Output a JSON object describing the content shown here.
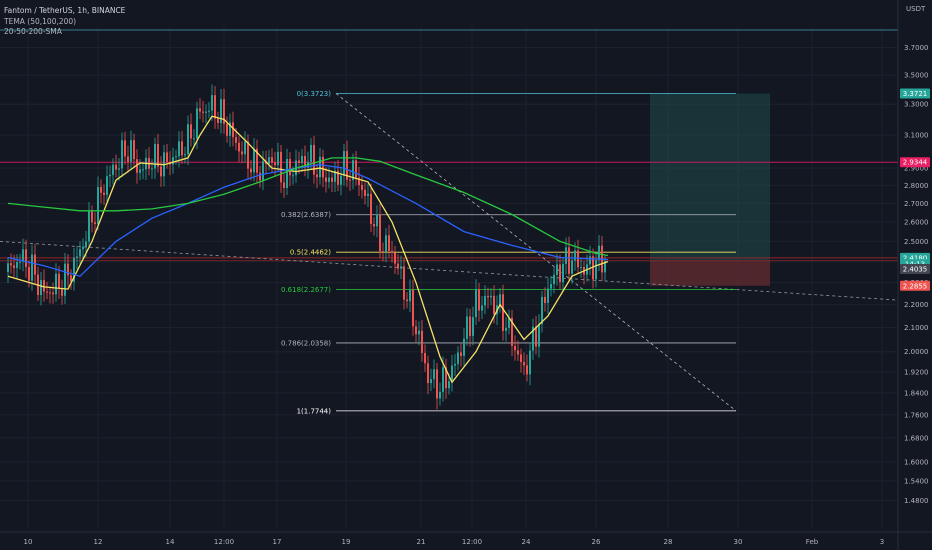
{
  "header": {
    "symbol_line": "Fantom / TetherUS, 1h, BINANCE",
    "indicator_1": "TEMA (50,100,200)",
    "indicator_2": "20-50-200-SMA"
  },
  "currency": "USDT",
  "colors": {
    "background": "#131722",
    "grid": "#1e222d",
    "candle_up": "#26a69a",
    "candle_down": "#ef5350",
    "sma_fast": "#f5e363",
    "sma_mid": "#2962ff",
    "sma_slow": "#27c93f",
    "fib_line": "#b2b5be",
    "resistance": "#c2185b",
    "target_zone": "#1f4d4a",
    "stop_zone": "#5e2a30"
  },
  "chart_data": {
    "type": "candlestick",
    "yscale": "log",
    "ylim": [
      1.4,
      3.85
    ],
    "y_ticks": [
      "3.7000",
      "3.5000",
      "3.3000",
      "3.1000",
      "2.9000",
      "2.8000",
      "2.7000",
      "2.6000",
      "2.5000",
      "2.4000",
      "2.3000",
      "2.2000",
      "2.1000",
      "2.0000",
      "1.9200",
      "1.8400",
      "1.7600",
      "1.6800",
      "1.6000",
      "1.5400",
      "1.4800"
    ],
    "x_ticks": [
      "10",
      "12",
      "14",
      "12:00",
      "17",
      "19",
      "21",
      "12:00",
      "24",
      "26",
      "28",
      "30",
      "Feb",
      "3"
    ],
    "fibonacci": [
      {
        "label": "0(3.3723)",
        "value": 3.3723,
        "color": "#4fc3d7"
      },
      {
        "label": "0.382(2.6387)",
        "value": 2.6387,
        "color": "#b2b5be"
      },
      {
        "label": "0.5(2.4462)",
        "value": 2.4462,
        "color": "#f5e363"
      },
      {
        "label": "0.618(2.2677)",
        "value": 2.2677,
        "color": "#27c93f"
      },
      {
        "label": "0.786(2.0358)",
        "value": 2.0358,
        "color": "#b2b5be"
      },
      {
        "label": "1(1.7744)",
        "value": 1.7744,
        "color": "#ffffff"
      }
    ],
    "price_tags": [
      {
        "label": "3.3721",
        "value": 3.3721,
        "bg": "#26a69a"
      },
      {
        "label": "2.9344",
        "value": 2.9344,
        "bg": "#e91e63"
      },
      {
        "label": "2.4180",
        "value": 2.418,
        "bg": "#26a69a"
      },
      {
        "label": "14:13",
        "value": 2.388,
        "bg": "#26a69a"
      },
      {
        "label": "2.4035",
        "value": 2.364,
        "bg": "#434651"
      },
      {
        "label": "2.2855",
        "value": 2.2855,
        "bg": "#ef5350"
      }
    ],
    "resistance_level": 2.9344,
    "position": {
      "entry": 2.4035,
      "target": 3.3721,
      "stop": 2.2855
    },
    "series": [
      {
        "name": "close",
        "points": [
          [
            0,
            2.35
          ],
          [
            4,
            2.42
          ],
          [
            8,
            2.36
          ],
          [
            12,
            2.25
          ],
          [
            16,
            2.28
          ],
          [
            20,
            2.33
          ],
          [
            24,
            2.45
          ],
          [
            28,
            2.62
          ],
          [
            32,
            2.8
          ],
          [
            36,
            2.92
          ],
          [
            40,
            3.02
          ],
          [
            44,
            2.88
          ],
          [
            48,
            2.95
          ],
          [
            52,
            2.92
          ],
          [
            56,
            2.98
          ],
          [
            60,
            3.06
          ],
          [
            64,
            3.25
          ],
          [
            68,
            3.28
          ],
          [
            72,
            3.2
          ],
          [
            76,
            3.05
          ],
          [
            80,
            2.95
          ],
          [
            84,
            2.88
          ],
          [
            88,
            2.97
          ],
          [
            92,
            2.84
          ],
          [
            96,
            2.92
          ],
          [
            100,
            2.96
          ],
          [
            104,
            2.88
          ],
          [
            108,
            2.82
          ],
          [
            112,
            2.9
          ],
          [
            116,
            2.86
          ],
          [
            120,
            2.7
          ],
          [
            124,
            2.5
          ],
          [
            128,
            2.45
          ],
          [
            132,
            2.28
          ],
          [
            136,
            2.1
          ],
          [
            140,
            1.9
          ],
          [
            144,
            1.86
          ],
          [
            148,
            1.92
          ],
          [
            152,
            2.05
          ],
          [
            156,
            2.2
          ],
          [
            160,
            2.23
          ],
          [
            164,
            2.18
          ],
          [
            168,
            2.05
          ],
          [
            172,
            1.92
          ],
          [
            176,
            2.08
          ],
          [
            180,
            2.28
          ],
          [
            184,
            2.37
          ],
          [
            188,
            2.42
          ],
          [
            192,
            2.36
          ],
          [
            196,
            2.4
          ],
          [
            200,
            2.42
          ]
        ]
      },
      {
        "name": "SMA 20",
        "points": [
          [
            0,
            2.33
          ],
          [
            12,
            2.28
          ],
          [
            20,
            2.27
          ],
          [
            28,
            2.5
          ],
          [
            36,
            2.83
          ],
          [
            44,
            2.93
          ],
          [
            52,
            2.92
          ],
          [
            60,
            2.96
          ],
          [
            64,
            3.1
          ],
          [
            68,
            3.22
          ],
          [
            72,
            3.2
          ],
          [
            80,
            3.05
          ],
          [
            88,
            2.9
          ],
          [
            96,
            2.88
          ],
          [
            104,
            2.9
          ],
          [
            112,
            2.86
          ],
          [
            120,
            2.82
          ],
          [
            128,
            2.6
          ],
          [
            136,
            2.3
          ],
          [
            144,
            1.98
          ],
          [
            148,
            1.88
          ],
          [
            156,
            2.0
          ],
          [
            164,
            2.2
          ],
          [
            172,
            2.05
          ],
          [
            180,
            2.15
          ],
          [
            188,
            2.33
          ],
          [
            196,
            2.38
          ],
          [
            200,
            2.4
          ]
        ]
      },
      {
        "name": "SMA 50",
        "points": [
          [
            0,
            2.42
          ],
          [
            12,
            2.38
          ],
          [
            24,
            2.33
          ],
          [
            36,
            2.5
          ],
          [
            48,
            2.62
          ],
          [
            60,
            2.7
          ],
          [
            72,
            2.79
          ],
          [
            84,
            2.86
          ],
          [
            96,
            2.9
          ],
          [
            104,
            2.92
          ],
          [
            112,
            2.9
          ],
          [
            120,
            2.84
          ],
          [
            136,
            2.7
          ],
          [
            152,
            2.55
          ],
          [
            168,
            2.48
          ],
          [
            184,
            2.42
          ],
          [
            200,
            2.41
          ]
        ]
      },
      {
        "name": "SMA 200",
        "points": [
          [
            0,
            2.7
          ],
          [
            12,
            2.68
          ],
          [
            24,
            2.66
          ],
          [
            36,
            2.66
          ],
          [
            48,
            2.67
          ],
          [
            60,
            2.7
          ],
          [
            72,
            2.75
          ],
          [
            84,
            2.82
          ],
          [
            96,
            2.9
          ],
          [
            108,
            2.96
          ],
          [
            116,
            2.96
          ],
          [
            124,
            2.94
          ],
          [
            136,
            2.86
          ],
          [
            152,
            2.76
          ],
          [
            168,
            2.64
          ],
          [
            184,
            2.5
          ],
          [
            196,
            2.44
          ],
          [
            200,
            2.43
          ]
        ]
      }
    ]
  }
}
